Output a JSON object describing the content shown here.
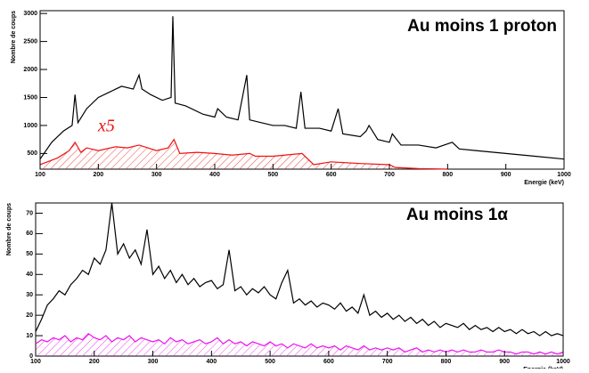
{
  "chart_data": [
    {
      "type": "line",
      "title": "Au moins 1 proton",
      "y_label": "Nombre de coups",
      "x_label": "Energie (keV)",
      "annotation": "x5",
      "xlim": [
        100,
        1000
      ],
      "ylim": [
        220,
        3050
      ],
      "xticks": [
        100,
        200,
        300,
        400,
        500,
        600,
        700,
        800,
        900,
        1000
      ],
      "yticks": [
        500,
        1000,
        1500,
        2000,
        2500,
        3000
      ],
      "series": [
        {
          "color": "#000000",
          "hatch": false,
          "x": [
            100,
            120,
            140,
            155,
            160,
            165,
            180,
            200,
            220,
            240,
            260,
            270,
            275,
            290,
            310,
            325,
            328,
            332,
            350,
            380,
            400,
            405,
            420,
            440,
            455,
            460,
            480,
            500,
            520,
            540,
            548,
            555,
            580,
            600,
            612,
            620,
            650,
            660,
            665,
            680,
            700,
            705,
            720,
            750,
            780,
            808,
            820,
            850,
            900,
            950,
            1000
          ],
          "values": [
            400,
            700,
            900,
            1000,
            1550,
            1050,
            1300,
            1500,
            1600,
            1700,
            1650,
            1900,
            1650,
            1550,
            1450,
            1500,
            2950,
            1400,
            1350,
            1200,
            1150,
            1300,
            1150,
            1100,
            1900,
            1100,
            1050,
            1000,
            1000,
            950,
            1600,
            950,
            950,
            900,
            1300,
            850,
            800,
            900,
            1000,
            750,
            700,
            850,
            650,
            650,
            600,
            700,
            580,
            550,
            500,
            450,
            400
          ]
        },
        {
          "color": "#ee1111",
          "hatch": true,
          "x": [
            100,
            130,
            150,
            160,
            170,
            180,
            200,
            230,
            250,
            270,
            300,
            320,
            330,
            340,
            370,
            400,
            430,
            460,
            470,
            500,
            530,
            550,
            570,
            600,
            650,
            700,
            710,
            750,
            800
          ],
          "values": [
            300,
            420,
            550,
            700,
            520,
            600,
            550,
            620,
            600,
            650,
            550,
            600,
            750,
            500,
            520,
            500,
            470,
            500,
            450,
            450,
            480,
            500,
            300,
            350,
            320,
            300,
            250,
            230,
            220
          ]
        }
      ]
    },
    {
      "type": "line",
      "title": "Au moins 1α",
      "y_label": "Nombre de coups",
      "x_label": "Energie (keV)",
      "xlim": [
        100,
        1000
      ],
      "ylim": [
        0,
        75
      ],
      "xticks": [
        100,
        200,
        300,
        400,
        500,
        600,
        700,
        800,
        900,
        1000
      ],
      "yticks": [
        0,
        10,
        20,
        30,
        40,
        50,
        60,
        70
      ],
      "series": [
        {
          "color": "#000000",
          "hatch": false,
          "x": [
            100,
            110,
            120,
            130,
            140,
            150,
            160,
            170,
            180,
            190,
            200,
            210,
            220,
            230,
            240,
            250,
            260,
            270,
            280,
            290,
            300,
            310,
            320,
            330,
            340,
            350,
            360,
            370,
            380,
            390,
            400,
            410,
            420,
            430,
            440,
            450,
            460,
            470,
            480,
            490,
            500,
            510,
            520,
            530,
            540,
            550,
            560,
            570,
            580,
            590,
            600,
            610,
            620,
            630,
            640,
            650,
            660,
            670,
            680,
            690,
            700,
            710,
            720,
            730,
            740,
            750,
            760,
            770,
            780,
            790,
            800,
            810,
            820,
            830,
            840,
            850,
            860,
            870,
            880,
            890,
            900,
            910,
            920,
            930,
            940,
            950,
            960,
            970,
            980,
            990,
            1000
          ],
          "values": [
            12,
            18,
            25,
            28,
            32,
            30,
            35,
            38,
            42,
            40,
            48,
            45,
            52,
            75,
            50,
            55,
            48,
            52,
            45,
            62,
            40,
            44,
            38,
            42,
            36,
            40,
            35,
            38,
            34,
            36,
            37,
            33,
            35,
            52,
            32,
            34,
            30,
            33,
            31,
            34,
            30,
            28,
            36,
            42,
            26,
            28,
            25,
            27,
            24,
            26,
            25,
            23,
            26,
            22,
            24,
            21,
            30,
            20,
            22,
            19,
            21,
            18,
            20,
            17,
            19,
            16,
            18,
            15,
            17,
            14,
            16,
            15,
            14,
            16,
            13,
            15,
            13,
            14,
            12,
            14,
            12,
            13,
            11,
            13,
            11,
            12,
            10,
            12,
            10,
            11,
            10
          ]
        },
        {
          "color": "#ee11ee",
          "hatch": true,
          "x": [
            100,
            110,
            120,
            130,
            140,
            150,
            160,
            170,
            180,
            190,
            200,
            210,
            220,
            230,
            240,
            250,
            260,
            270,
            280,
            290,
            300,
            310,
            320,
            330,
            340,
            350,
            360,
            370,
            380,
            390,
            400,
            410,
            420,
            430,
            440,
            450,
            460,
            470,
            480,
            490,
            500,
            510,
            520,
            530,
            540,
            550,
            560,
            570,
            580,
            590,
            600,
            610,
            620,
            630,
            640,
            650,
            660,
            670,
            680,
            690,
            700,
            710,
            720,
            730,
            740,
            750,
            760,
            770,
            780,
            790,
            800,
            810,
            820,
            830,
            840,
            850,
            860,
            870,
            880,
            890,
            900,
            910,
            920,
            930,
            940,
            950,
            960,
            970,
            980,
            990,
            1000
          ],
          "values": [
            6,
            8,
            7,
            9,
            8,
            10,
            7,
            9,
            8,
            11,
            9,
            8,
            10,
            7,
            9,
            8,
            10,
            7,
            9,
            8,
            7,
            8,
            6,
            9,
            7,
            8,
            6,
            7,
            8,
            6,
            7,
            9,
            6,
            8,
            6,
            7,
            5,
            7,
            6,
            5,
            7,
            5,
            6,
            4,
            6,
            5,
            4,
            6,
            4,
            5,
            4,
            5,
            3,
            5,
            4,
            3,
            5,
            3,
            4,
            3,
            4,
            3,
            4,
            2,
            3,
            4,
            2,
            3,
            2,
            3,
            2,
            3,
            2,
            3,
            2,
            2,
            3,
            2,
            2,
            3,
            2,
            2,
            1,
            2,
            2,
            1,
            2,
            1,
            2,
            1,
            2
          ]
        }
      ]
    }
  ]
}
